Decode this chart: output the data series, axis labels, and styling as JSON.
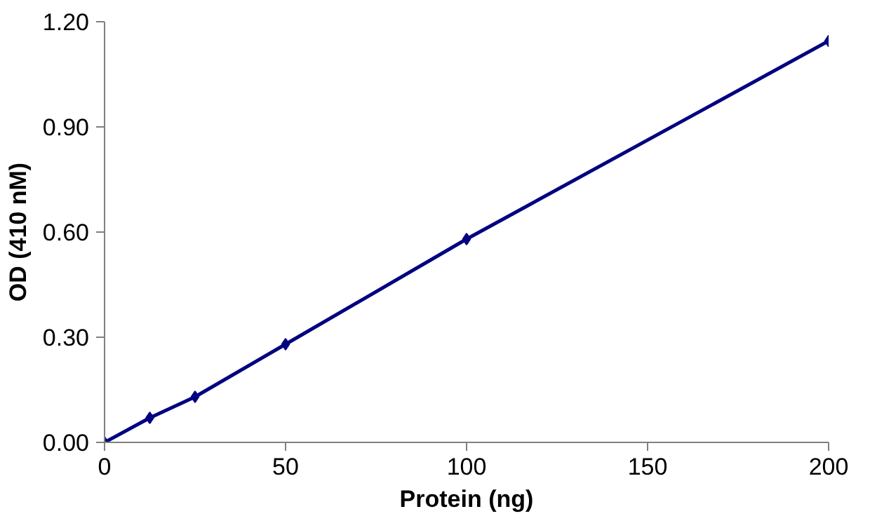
{
  "chart_data": {
    "type": "line",
    "xlabel": "Protein (ng)",
    "ylabel": "OD (410 nM)",
    "x": [
      0,
      12.5,
      25,
      50,
      100,
      200
    ],
    "series": [
      {
        "color": "#000080",
        "values": [
          0,
          0.07,
          0.13,
          0.28,
          0.58,
          1.145
        ]
      }
    ],
    "xlim": [
      0,
      200
    ],
    "xticks": [
      0,
      50,
      100,
      150,
      200
    ],
    "ylim": [
      0,
      1.2
    ],
    "yticks": [
      {
        "value": 0,
        "label": "0.00"
      },
      {
        "value": 0.3,
        "label": "0.30"
      },
      {
        "value": 0.6,
        "label": "0.60"
      },
      {
        "value": 0.9,
        "label": "0.90"
      },
      {
        "value": 1.2,
        "label": "1.20"
      }
    ],
    "grid": false,
    "marker": "diamond",
    "line_style": "solid"
  }
}
